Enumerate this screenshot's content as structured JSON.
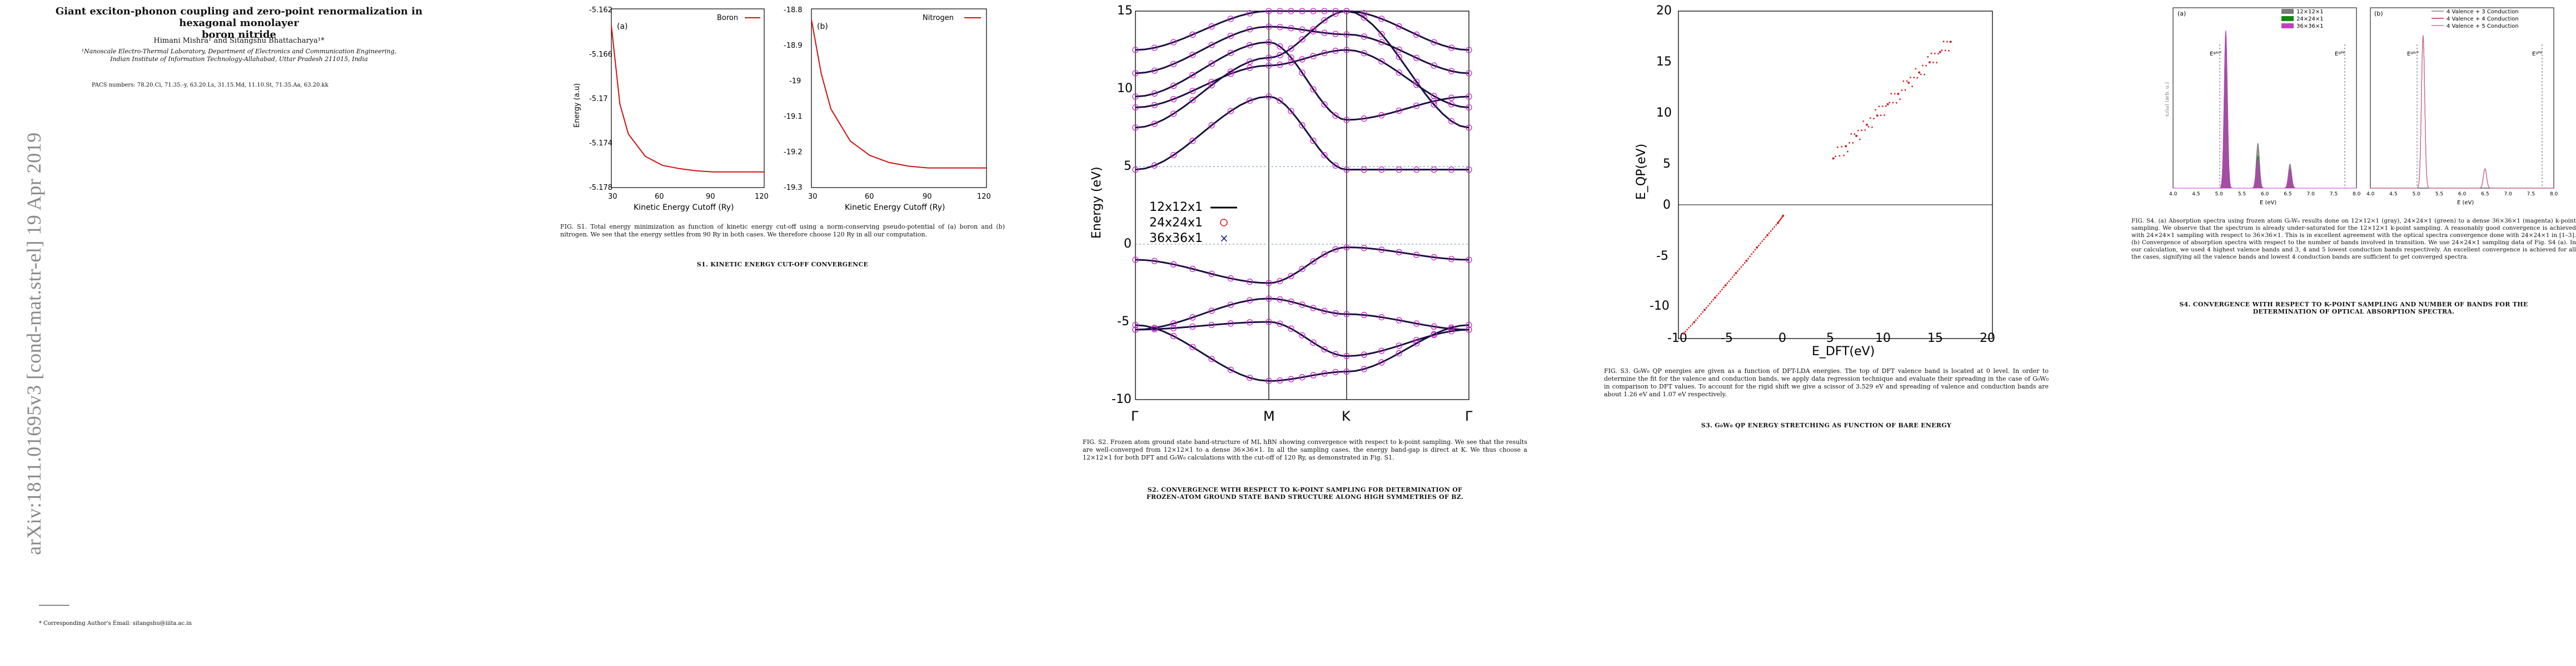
{
  "stamp": "arXiv:1811.01695v3  [cond-mat.str-el]  19 Apr 2019",
  "page1": {
    "title_line1": "Giant exciton-phonon coupling and zero-point renormalization in hexagonal monolayer",
    "title_line2": "boron nitride",
    "authors": "Himani Mishra¹ and Sitangshu Bhattacharya¹*",
    "affil_line1": "¹Nanoscale Electro-Thermal Laboratory, Department of Electronics and Communication Engineering,",
    "affil_line2": "Indian Institute of Information Technology-Allahabad, Uttar Pradesh 211015, India",
    "pacs": "PACS numbers: 78.20.Ci, 71.35.-y, 63.20.Ls, 31.15.Md, 11.10.St, 71.35.Aa, 63.20.kk",
    "footnote": "* Corresponding Author's Email: sitangshu@iiita.ac.in"
  },
  "page2": {
    "caption": "FIG. S1. Total energy minimization as function of kinetic energy cut-off using a norm-conserving pseudo-potential of (a) boron and (b) nitrogen. We see that the energy settles from 90 Ry in both cases. We therefore choose 120 Ry in all our computation.",
    "section": "S1.   KINETIC ENERGY CUT-OFF CONVERGENCE",
    "panel_a_label": "(a)",
    "panel_b_label": "(b)",
    "legend_boron": "Boron",
    "legend_nitrogen": "Nitrogen",
    "line_color": "#d01010"
  },
  "page3": {
    "caption": "FIG. S2. Frozen atom ground state band-structure of ML hBN showing convergence with respect to k-point sampling. We see that the results are well-converged from 12×12×1 to a dense 36×36×1. In all the sampling cases, the energy band-gap is direct at K. We thus choose a 12×12×1 for both DFT and G₀W₀ calculations with the cut-off of 120 Ry, as demonstrated in Fig. S1.",
    "section_line1": "S2.   CONVERGENCE WITH RESPECT TO K-POINT SAMPLING FOR DETERMINATION OF",
    "section_line2": "FROZEN-ATOM GROUND STATE BAND STRUCTURE ALONG HIGH SYMMETRIES OF BZ."
  },
  "page4": {
    "caption": "FIG. S3. G₀W₀ QP energies are given as a function of DFT-LDA energies. The top of DFT valence band is located at 0 level. In order to determine the fit for the valence and conduction bands, we apply data regression technique and evaluate their spreading in the case of G₀W₀ in comparison to DFT values. To account for the rigid shift we give a scissor of 3.529 eV and spreading of valence and conduction bands are about 1.26 eV and 1.07 eV respectively.",
    "section": "S3.   G₀W₀ QP ENERGY STRETCHING AS FUNCTION OF BARE ENERGY",
    "ylabel": "E_QP(eV)",
    "xlabel": "E_DFT(eV)",
    "point_color": "#d02020"
  },
  "page5": {
    "caption": "FIG. S4. (a) Absorption spectra using frozen atom G₀W₀ results done on 12×12×1 (gray), 24×24×1 (green) to a dense 36×36×1 (magenta) k-point sampling. We observe that the spectrum is already under-saturated for the 12×12×1 k-point sampling. A reasonably good convergence is achieved with 24×24×1 sampling with respect to 36×36×1. This is in excellent agreement with the optical spectra convergence done with 24×24×1 in [1–3]. (b) Convergence of absorption spectra with respect to the number of bands involved in transition. We use 24×24×1 sampling data of Fig. S4 (a). In our calculation, we used 4 highest valence bands and 3, 4 and 5 lowest conduction bands respectively. An excellent convergence is achieved for all the cases, signifying all the valence bands and lowest 4 conduction bands are sufficient to get converged spectra.",
    "section_line1": "S4.   CONVERGENCE WITH RESPECT TO K-POINT SAMPLING AND NUMBER OF BANDS FOR THE",
    "section_line2": "DETERMINATION OF OPTICAL ABSORPTION SPECTRA.",
    "panel_a_label": "(a)",
    "panel_b_label": "(b)",
    "a_ylabel": "ε₂(ω) (arb. u.)",
    "a_xlabel": "E (eV)",
    "b_xlabel": "E (eV)",
    "mark_a_left": "Eᵍᴬʳᴾ",
    "mark_a_right": "Eᵍᴾᴷ",
    "legend_a": [
      {
        "label": "12×12×1",
        "color": "#7a7a7a"
      },
      {
        "label": "24×24×1",
        "color": "#108a10"
      },
      {
        "label": "36×36×1",
        "color": "#c040c0"
      }
    ],
    "legend_b": [
      {
        "label": "4 Valence + 3 Conduction",
        "color": "#808080"
      },
      {
        "label": "4 Valence + 4 Conduction",
        "color": "#c02060"
      },
      {
        "label": "4 Valence + 5 Conduction",
        "color": "#d07090"
      }
    ]
  },
  "chart_data": [
    {
      "type": "line",
      "title": "",
      "xlabel": "Kinetic Energy Cutoff (Ry)",
      "ylabel": "Energy (a.u)",
      "xlim": [
        30,
        120
      ],
      "ylim": [
        -5.178,
        -5.162
      ],
      "xticks": [
        "30",
        "60",
        "90",
        "120"
      ],
      "yticks": [
        "-5.162",
        "-5.166",
        "-5.17",
        "-5.174",
        "-5.178"
      ],
      "series": [
        {
          "name": "Boron",
          "x": [
            30,
            35,
            40,
            50,
            60,
            70,
            80,
            90,
            100,
            110,
            120
          ],
          "y": [
            -5.1635,
            -5.1705,
            -5.1732,
            -5.1752,
            -5.176,
            -5.1763,
            -5.1765,
            -5.1766,
            -5.1766,
            -5.1766,
            -5.1766
          ]
        }
      ]
    },
    {
      "type": "line",
      "title": "",
      "xlabel": "Kinetic Energy Cutoff (Ry)",
      "ylabel": "",
      "xlim": [
        30,
        120
      ],
      "ylim": [
        -19.3,
        -18.8
      ],
      "xticks": [
        "30",
        "60",
        "90",
        "120"
      ],
      "yticks": [
        "-18.8",
        "-18.9",
        "-19",
        "-19.1",
        "-19.2",
        "-19.3"
      ],
      "series": [
        {
          "name": "Nitrogen",
          "x": [
            30,
            35,
            40,
            50,
            60,
            70,
            80,
            90,
            100,
            110,
            120
          ],
          "y": [
            -18.83,
            -18.98,
            -19.08,
            -19.17,
            -19.21,
            -19.23,
            -19.24,
            -19.245,
            -19.245,
            -19.245,
            -19.245
          ]
        }
      ]
    },
    {
      "type": "line",
      "title": "",
      "xlabel": "",
      "ylabel": "Energy (eV)",
      "ylim": [
        -10,
        15
      ],
      "xticks": [
        "Γ",
        "M",
        "K",
        "Γ"
      ],
      "yticks": [
        "15",
        "10",
        "5",
        "0",
        "-5",
        "-10"
      ],
      "legend": [
        "12x12x1",
        "24x24x1",
        "36x36x1"
      ],
      "series": [
        {
          "name": "valence",
          "y_at_kpoints": [
            [
              -1.0,
              -2.5,
              -0.2,
              -1.0
            ],
            [
              -5.5,
              -3.5,
              -4.5,
              -5.5
            ],
            [
              -5.5,
              -5.0,
              -7.2,
              -5.5
            ],
            [
              -5.2,
              -8.8,
              -8.2,
              -5.2
            ]
          ]
        },
        {
          "name": "conduction",
          "y_at_kpoints": [
            [
              4.8,
              9.5,
              4.8,
              4.8
            ],
            [
              9.5,
              13.0,
              8.0,
              9.5
            ],
            [
              8.8,
              11.5,
              12.5,
              8.8
            ],
            [
              7.5,
              12.0,
              15.0,
              7.5
            ],
            [
              11.0,
              14.0,
              13.5,
              11.0
            ],
            [
              12.5,
              15.0,
              15.0,
              12.5
            ]
          ]
        }
      ]
    },
    {
      "type": "scatter",
      "title": "",
      "xlabel": "E_DFT(eV)",
      "ylabel": "E_QP(eV)",
      "xlim": [
        -10,
        20
      ],
      "ylim": [
        -12,
        20
      ],
      "xticks": [
        "-10",
        "-5",
        "0",
        "5",
        "10",
        "15",
        "20"
      ],
      "yticks": [
        "20",
        "15",
        "10",
        "5",
        "0",
        "-5",
        "-10"
      ],
      "series": [
        {
          "name": "valence",
          "x": [
            -9.5,
            -8.5,
            -7.5,
            -6.5,
            -5.5,
            -4.5,
            -3.5,
            -2.5,
            -1.5,
            -0.5,
            0
          ],
          "y": [
            -11.5,
            -10.4,
            -9.2,
            -8.0,
            -6.8,
            -5.6,
            -4.4,
            -3.1,
            -1.9,
            -0.7,
            0
          ]
        },
        {
          "name": "conduction",
          "x": [
            4.8,
            6,
            7,
            8,
            9,
            10,
            11,
            12,
            13,
            14,
            15,
            16
          ],
          "y": [
            5.6,
            6.8,
            7.8,
            8.9,
            9.8,
            10.9,
            11.9,
            13.0,
            14.0,
            15.0,
            16.0,
            17.0
          ]
        }
      ]
    },
    {
      "type": "area",
      "title": "",
      "xlabel": "E (eV)",
      "ylabel": "ε₂(ω) (arb. u.)",
      "xticks": [
        "4.0",
        "4.5",
        "5.0",
        "5.5",
        "6.0",
        "6.5",
        "7.0",
        "7.5",
        "8.0"
      ],
      "series": [
        {
          "name": "12×12×1",
          "peaks": [
            [
              5.15,
              0.75
            ],
            [
              5.85,
              0.28
            ],
            [
              6.55,
              0.15
            ]
          ]
        },
        {
          "name": "24×24×1",
          "peaks": [
            [
              5.15,
              0.95
            ],
            [
              5.85,
              0.2
            ],
            [
              6.55,
              0.12
            ]
          ]
        },
        {
          "name": "36×36×1",
          "peaks": [
            [
              5.15,
              0.98
            ],
            [
              5.85,
              0.18
            ],
            [
              6.55,
              0.12
            ]
          ]
        }
      ]
    },
    {
      "type": "line",
      "title": "",
      "xlabel": "E (eV)",
      "ylabel": "",
      "xticks": [
        "4.0",
        "4.5",
        "5.0",
        "5.5",
        "6.0",
        "6.5",
        "7.0",
        "7.5",
        "8.0"
      ],
      "series": [
        {
          "name": "4 Valence + 3 Conduction",
          "peaks": [
            [
              5.15,
              0.95
            ],
            [
              6.5,
              0.12
            ]
          ]
        },
        {
          "name": "4 Valence + 4 Conduction",
          "peaks": [
            [
              5.15,
              0.95
            ],
            [
              6.5,
              0.12
            ]
          ]
        },
        {
          "name": "4 Valence + 5 Conduction",
          "peaks": [
            [
              5.15,
              0.95
            ],
            [
              6.5,
              0.12
            ]
          ]
        }
      ]
    }
  ]
}
